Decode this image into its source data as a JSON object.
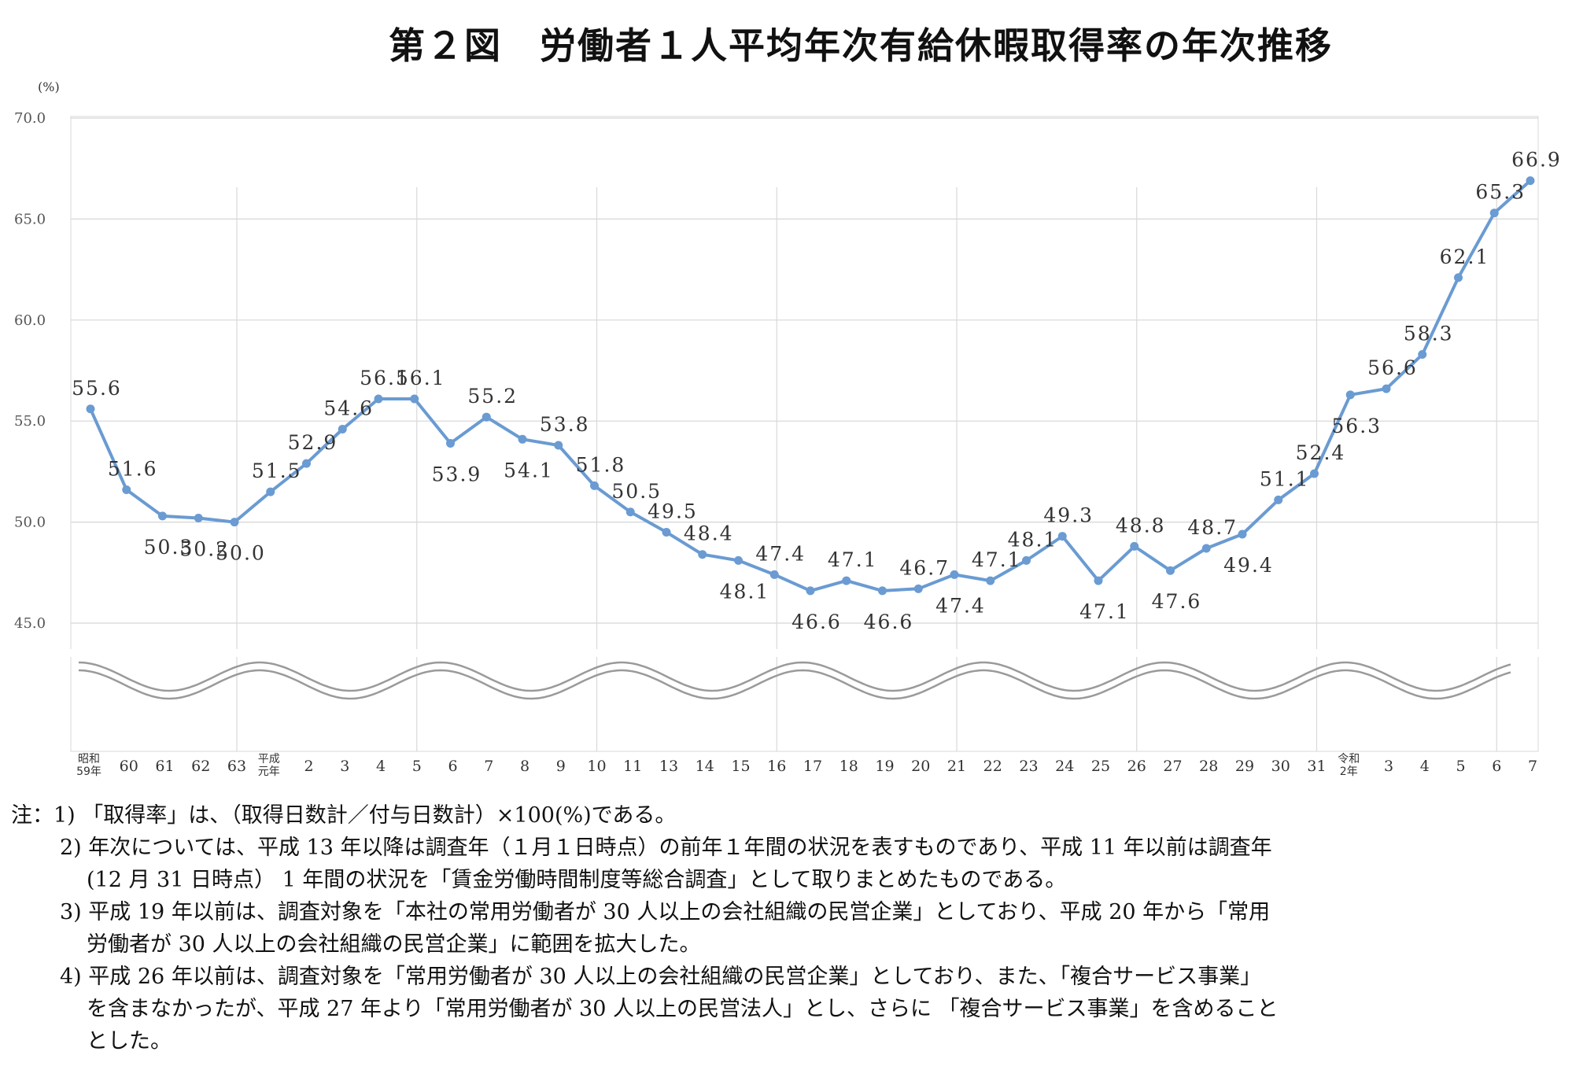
{
  "title": "第２図　労働者１人平均年次有給休暇取得率の年次推移",
  "chart_data": {
    "type": "line",
    "ylabel": "(%)",
    "ylim": [
      45.0,
      70.0
    ],
    "yticks": [
      "70.0",
      "65.0",
      "60.0",
      "55.0",
      "50.0",
      "45.0"
    ],
    "axis_break": true,
    "grid": true,
    "categories": [
      [
        "昭和",
        "59年"
      ],
      [
        "60"
      ],
      [
        "61"
      ],
      [
        "62"
      ],
      [
        "63"
      ],
      [
        "平成",
        "元年"
      ],
      [
        "2"
      ],
      [
        "3"
      ],
      [
        "4"
      ],
      [
        "5"
      ],
      [
        "6"
      ],
      [
        "7"
      ],
      [
        "8"
      ],
      [
        "9"
      ],
      [
        "10"
      ],
      [
        "11"
      ],
      [
        "13"
      ],
      [
        "14"
      ],
      [
        "15"
      ],
      [
        "16"
      ],
      [
        "17"
      ],
      [
        "18"
      ],
      [
        "19"
      ],
      [
        "20"
      ],
      [
        "21"
      ],
      [
        "22"
      ],
      [
        "23"
      ],
      [
        "24"
      ],
      [
        "25"
      ],
      [
        "26"
      ],
      [
        "27"
      ],
      [
        "28"
      ],
      [
        "29"
      ],
      [
        "30"
      ],
      [
        "31"
      ],
      [
        "令和",
        "2年"
      ],
      [
        "3"
      ],
      [
        "4"
      ],
      [
        "5"
      ],
      [
        "6"
      ],
      [
        "7"
      ]
    ],
    "values": [
      55.6,
      51.6,
      50.3,
      50.2,
      50.0,
      51.5,
      52.9,
      54.6,
      56.1,
      56.1,
      53.9,
      55.2,
      54.1,
      53.8,
      51.8,
      50.5,
      49.5,
      48.4,
      48.1,
      47.4,
      46.6,
      47.1,
      46.6,
      46.7,
      47.4,
      47.1,
      48.1,
      49.3,
      47.1,
      48.8,
      47.6,
      48.7,
      49.4,
      51.1,
      52.4,
      56.3,
      56.6,
      58.3,
      62.1,
      65.3,
      66.9
    ],
    "data_labels": [
      "55.6",
      "51.6",
      "50.3",
      "50.2",
      "50.0",
      "51.5",
      "52.9",
      "54.6",
      "56.1",
      "56.1",
      "53.9",
      "55.2",
      "54.1",
      "53.8",
      "51.8",
      "50.5",
      "49.5",
      "48.4",
      "48.1",
      "47.4",
      "46.6",
      "47.1",
      "46.6",
      "46.7",
      "47.4",
      "47.1",
      "48.1",
      "49.3",
      "47.1",
      "48.8",
      "47.6",
      "48.7",
      "49.4",
      "51.1",
      "52.4",
      "56.3",
      "56.6",
      "58.3",
      "62.1",
      "65.3",
      "66.9"
    ],
    "label_pos": [
      "above",
      "above",
      "below",
      "below",
      "below",
      "above",
      "above",
      "above",
      "above",
      "above",
      "below",
      "above",
      "below",
      "above",
      "above",
      "above",
      "above",
      "above",
      "below",
      "above",
      "below",
      "above",
      "below",
      "above",
      "below",
      "above",
      "above",
      "above",
      "below",
      "above",
      "below",
      "above",
      "below",
      "above",
      "above",
      "below",
      "above",
      "above",
      "above",
      "above",
      "above"
    ],
    "line_color": "#6a9bd2"
  },
  "notes": [
    {
      "num": "注：1)",
      "text": "「取得率」は、（取得日数計／付与日数計）×100(%)である。",
      "cont": []
    },
    {
      "num": "2)",
      "text": "年次については、平成 13 年以降は調査年（１月１日時点）の前年１年間の状況を表すものであり、平成 11 年以前は調査年",
      "cont": [
        "(12 月 31 日時点） 1 年間の状況を「賃金労働時間制度等総合調査」として取りまとめたものである。"
      ]
    },
    {
      "num": "3)",
      "text": "平成 19 年以前は、調査対象を「本社の常用労働者が 30 人以上の会社組織の民営企業」としており、平成 20 年から「常用",
      "cont": [
        "労働者が 30 人以上の会社組織の民営企業」に範囲を拡大した。"
      ]
    },
    {
      "num": "4)",
      "text": "平成 26 年以前は、調査対象を「常用労働者が 30 人以上の会社組織の民営企業」としており、また、「複合サービス事業」",
      "cont": [
        "を含まなかったが、平成 27 年より「常用労働者が 30 人以上の民営法人」とし、さらに 「複合サービス事業」を含めること",
        "とした。"
      ]
    }
  ]
}
